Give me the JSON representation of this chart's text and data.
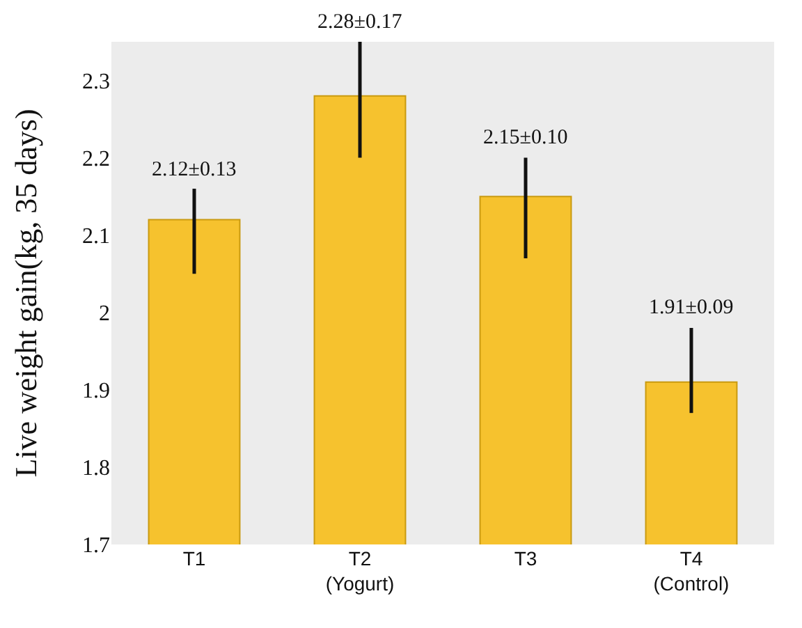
{
  "chart_data": {
    "type": "bar",
    "ylabel": "Live weight gain(kg, 35 days)",
    "categories": [
      "T1",
      "T2\n(Yogurt)",
      "T3",
      "T4\n(Control)"
    ],
    "values": [
      2.12,
      2.28,
      2.15,
      1.91
    ],
    "errors": [
      [
        2.05,
        2.16
      ],
      [
        2.2,
        2.35
      ],
      [
        2.07,
        2.2
      ],
      [
        1.87,
        1.98
      ]
    ],
    "value_labels": [
      "2.12±0.13",
      "2.28±0.17",
      "2.15±0.10",
      "1.91±0.09"
    ],
    "color": "#f6c22e",
    "ylim": [
      1.7,
      2.35
    ],
    "yticks": [
      1.7,
      1.8,
      1.9,
      2,
      2.1,
      2.2,
      2.3
    ],
    "grid": false,
    "legend": false
  }
}
